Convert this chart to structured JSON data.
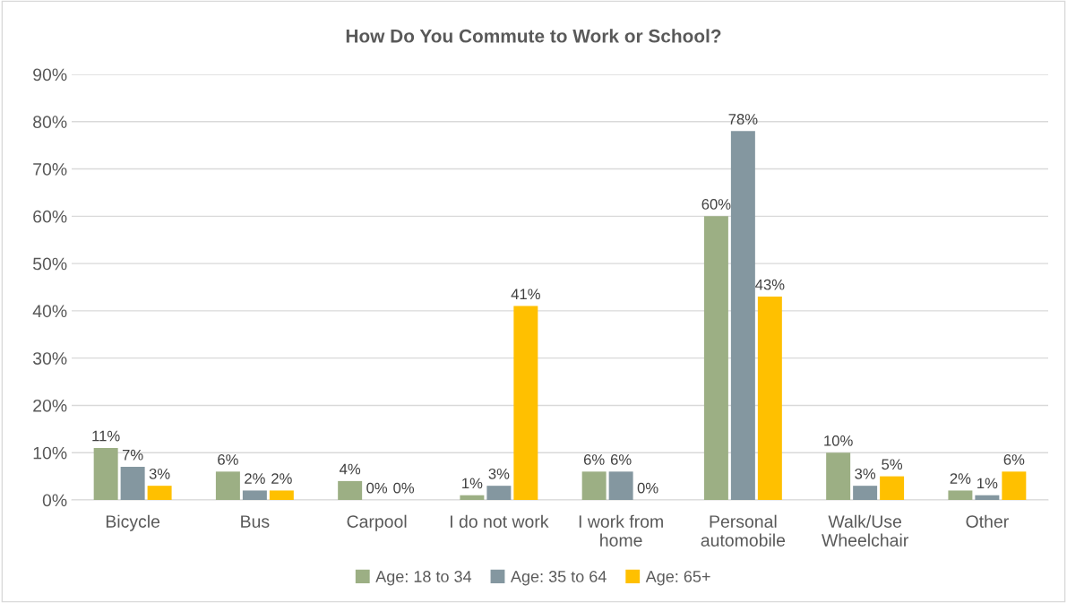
{
  "chart_data": {
    "type": "bar",
    "title": "How Do You Commute to Work or School?",
    "categories": [
      "Bicycle",
      "Bus",
      "Carpool",
      "I do not work",
      "I work from\nhome",
      "Personal\nautomobile",
      "Walk/Use\nWheelchair",
      "Other"
    ],
    "series": [
      {
        "name": "Age: 18 to 34",
        "color": "#9caf84",
        "values": [
          11,
          6,
          4,
          1,
          6,
          60,
          10,
          2
        ]
      },
      {
        "name": "Age: 35 to 64",
        "color": "#8497a0",
        "values": [
          7,
          2,
          0,
          3,
          6,
          78,
          3,
          1
        ]
      },
      {
        "name": "Age: 65+",
        "color": "#ffc000",
        "values": [
          3,
          2,
          0,
          41,
          0,
          43,
          5,
          6
        ]
      }
    ],
    "ylim": [
      0,
      90
    ],
    "yticks": [
      {
        "value": 0,
        "label": "0%"
      },
      {
        "value": 10,
        "label": "10%"
      },
      {
        "value": 20,
        "label": "20%"
      },
      {
        "value": 30,
        "label": "30%"
      },
      {
        "value": 40,
        "label": "40%"
      },
      {
        "value": 50,
        "label": "50%"
      },
      {
        "value": 60,
        "label": "60%"
      },
      {
        "value": 70,
        "label": "70%"
      },
      {
        "value": 80,
        "label": "80%"
      },
      {
        "value": 90,
        "label": "90%"
      }
    ],
    "grid": "y",
    "legend": "bottom",
    "value_labels": [
      [
        "11%",
        "6%",
        "4%",
        "1%",
        "6%",
        "60%",
        "10%",
        "2%"
      ],
      [
        "7%",
        "2%",
        "0%",
        "3%",
        "6%",
        "78%",
        "3%",
        "1%"
      ],
      [
        "3%",
        "2%",
        "0%",
        "41%",
        "0%",
        "43%",
        "5%",
        "6%"
      ]
    ]
  }
}
